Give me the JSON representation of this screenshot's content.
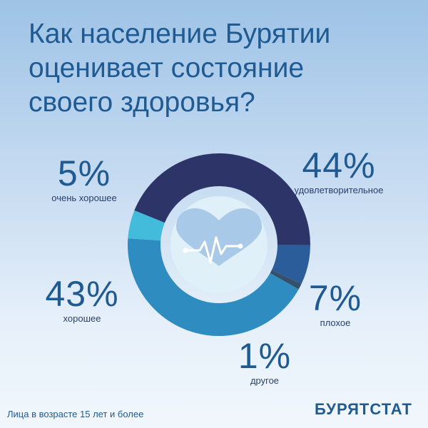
{
  "title_lines": [
    "Как население Бурятии",
    "оценивает состояние",
    "своего здоровья?"
  ],
  "chart_data": {
    "type": "pie",
    "title": "Как население Бурятии оценивает состояние своего здоровья?",
    "slices": [
      {
        "label": "удовлетворительное",
        "value": 44,
        "display": "44%",
        "color": "#2d3568"
      },
      {
        "label": "плохое",
        "value": 7,
        "display": "7%",
        "color": "#2a5d99"
      },
      {
        "label": "другое",
        "value": 1,
        "display": "1%",
        "color": "#35506b"
      },
      {
        "label": "хорошее",
        "value": 43,
        "display": "43%",
        "color": "#2e8cc0"
      },
      {
        "label": "очень хорошее",
        "value": 5,
        "display": "5%",
        "color": "#43bcdc"
      }
    ]
  },
  "footnote": "Лица в возрасте 15 лет и более",
  "logo": "БУРЯТСТАТ",
  "center_icon": "heart-pulse-icon"
}
